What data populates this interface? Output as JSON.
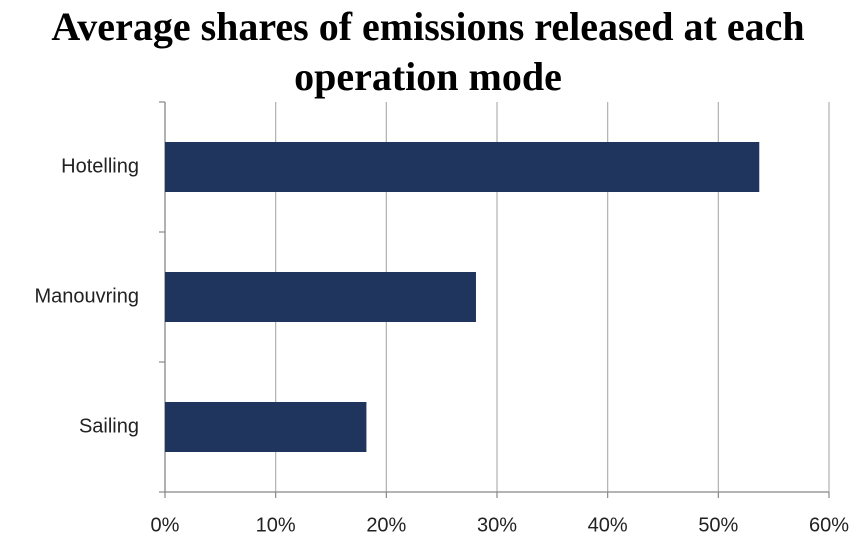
{
  "chart_data": {
    "type": "bar",
    "orientation": "horizontal",
    "title": "Average shares of emissions released at each operation mode",
    "categories": [
      "Hotelling",
      "Manouvring",
      "Sailing"
    ],
    "values": [
      53.7,
      28.1,
      18.2
    ],
    "color": "#1f355e",
    "xlim": [
      0,
      60
    ],
    "xticks": [
      {
        "value": 0,
        "label": "0%"
      },
      {
        "value": 10,
        "label": "10%"
      },
      {
        "value": 20,
        "label": "20%"
      },
      {
        "value": 30,
        "label": "30%"
      },
      {
        "value": 40,
        "label": "40%"
      },
      {
        "value": 50,
        "label": "50%"
      },
      {
        "value": 60,
        "label": "60%"
      }
    ],
    "grid": true
  }
}
